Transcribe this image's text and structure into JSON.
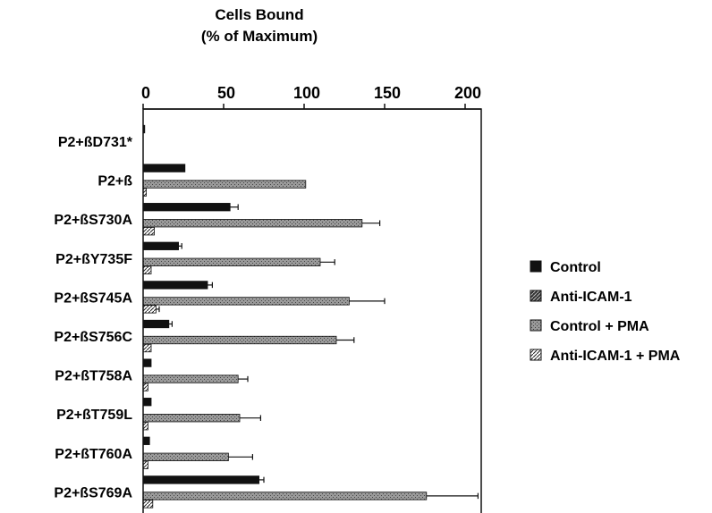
{
  "chart_data": {
    "type": "bar",
    "orientation": "horizontal",
    "title_lines": [
      "Cells Bound",
      "(% of Maximum)"
    ],
    "xlim": [
      0,
      210
    ],
    "x_ticks": [
      0,
      50,
      100,
      150,
      200
    ],
    "x_axis_position": "top",
    "grid": false,
    "legend_placement": "right",
    "categories": [
      "P2+ßD731*",
      "P2+ß",
      "P2+ßS730A",
      "P2+ßY735F",
      "P2+ßS745A",
      "P2+ßS756C",
      "P2+ßT758A",
      "P2+ßT759L",
      "P2+ßT760A",
      "P2+ßS769A"
    ],
    "series": [
      {
        "name": "Control",
        "pattern": "solid",
        "values": [
          1,
          26,
          54,
          22,
          40,
          16,
          5,
          5,
          4,
          72
        ],
        "errors": [
          0,
          0,
          5,
          2,
          3,
          2,
          0,
          0,
          0,
          3
        ]
      },
      {
        "name": "Anti-ICAM-1",
        "pattern": "dark-hatch",
        "values": [
          0,
          0,
          0,
          0,
          0,
          0,
          0,
          0,
          0,
          0
        ],
        "errors": [
          0,
          0,
          0,
          0,
          0,
          0,
          0,
          0,
          0,
          0
        ]
      },
      {
        "name": "Control + PMA",
        "pattern": "gray-stipple",
        "values": [
          0,
          101,
          136,
          110,
          128,
          120,
          59,
          60,
          53,
          176
        ],
        "errors": [
          0,
          0,
          11,
          9,
          22,
          11,
          6,
          13,
          15,
          32
        ]
      },
      {
        "name": "Anti-ICAM-1 + PMA",
        "pattern": "light-hatch",
        "values": [
          0,
          2,
          7,
          5,
          8,
          5,
          3,
          3,
          3,
          6
        ],
        "errors": [
          0,
          0,
          0,
          0,
          2,
          0,
          0,
          0,
          0,
          0
        ]
      }
    ]
  }
}
